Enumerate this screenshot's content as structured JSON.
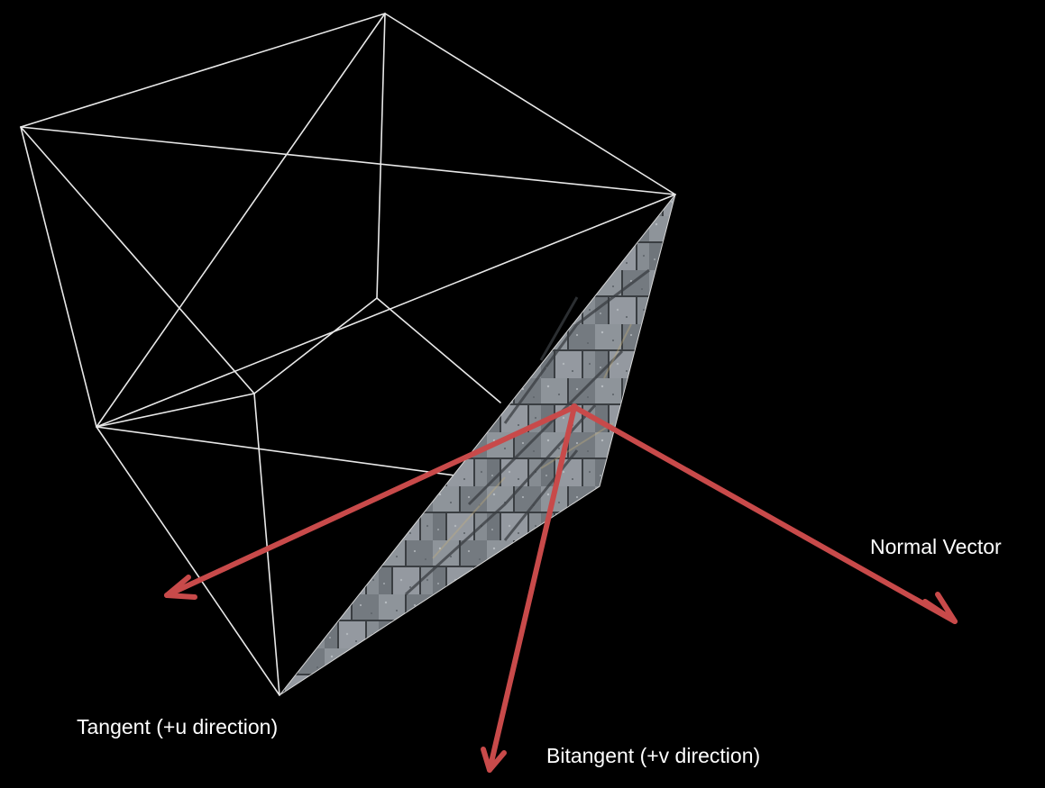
{
  "diagram": {
    "labels": {
      "normal": "Normal Vector",
      "tangent": "Tangent (+u direction)",
      "bitangent": "Bitangent (+v direction)"
    },
    "colors": {
      "background": "#000000",
      "wireframe": "#e8e8e8",
      "arrow": "#c84a4a",
      "label": "#ffffff",
      "stone_base": "#8a8f95",
      "stone_dark": "#3c4044",
      "stone_light": "#b5b9bd"
    }
  }
}
